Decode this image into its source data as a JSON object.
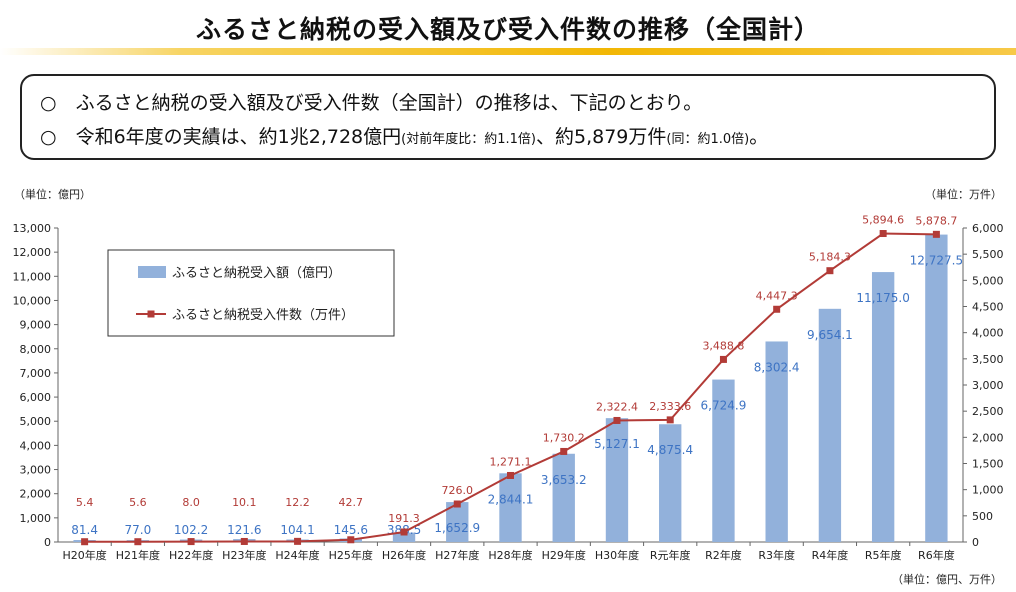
{
  "header": {
    "title": "ふるさと納税の受入額及び受入件数の推移（全国計）"
  },
  "summary": {
    "line1": "○　ふるさと納税の受入額及び受入件数（全国計）の推移は、下記のとおり。",
    "line2_main": "○　令和6年度の実績は、約1兆2,728億円",
    "line2_small1": "(対前年度比：約1.1倍)",
    "line2_mid": "、約5,879万件",
    "line2_small2": "(同：約1.0倍)",
    "line2_end": "。"
  },
  "chart_data": {
    "type": "bar",
    "categories": [
      "H20年度",
      "H21年度",
      "H22年度",
      "H23年度",
      "H24年度",
      "H25年度",
      "H26年度",
      "H27年度",
      "H28年度",
      "H29年度",
      "H30年度",
      "R元年度",
      "R2年度",
      "R3年度",
      "R4年度",
      "R5年度",
      "R6年度"
    ],
    "series": [
      {
        "name": "ふるさと納税受入額（億円）",
        "type": "bar",
        "axis": "left",
        "values": [
          81.4,
          77.0,
          102.2,
          121.6,
          104.1,
          145.6,
          388.5,
          1652.9,
          2844.1,
          3653.2,
          5127.1,
          4875.4,
          6724.9,
          8302.4,
          9654.1,
          11175.0,
          12727.5
        ],
        "labels": [
          "81.4",
          "77.0",
          "102.2",
          "121.6",
          "104.1",
          "145.6",
          "388.5",
          "1,652.9",
          "2,844.1",
          "3,653.2",
          "5,127.1",
          "4,875.4",
          "6,724.9",
          "8,302.4",
          "9,654.1",
          "11,175.0",
          "12,727.5"
        ]
      },
      {
        "name": "ふるさと納税受入件数（万件）",
        "type": "line",
        "axis": "right",
        "values": [
          5.4,
          5.6,
          8.0,
          10.1,
          12.2,
          42.7,
          191.3,
          726.0,
          1271.1,
          1730.2,
          2322.4,
          2333.6,
          3488.8,
          4447.3,
          5184.3,
          5894.6,
          5878.7
        ],
        "labels": [
          "5.4",
          "5.6",
          "8.0",
          "10.1",
          "12.2",
          "42.7",
          "191.3",
          "726.0",
          "1,271.1",
          "1,730.2",
          "2,322.4",
          "2,333.6",
          "3,488.8",
          "4,447.3",
          "5,184.3",
          "5,894.6",
          "5,878.7"
        ]
      }
    ],
    "ylim_left": [
      0,
      13000
    ],
    "yticks_left": [
      "0",
      "1,000",
      "2,000",
      "3,000",
      "4,000",
      "5,000",
      "6,000",
      "7,000",
      "8,000",
      "9,000",
      "10,000",
      "11,000",
      "12,000",
      "13,000"
    ],
    "ylim_right": [
      0,
      6000
    ],
    "yticks_right": [
      "0",
      "500",
      "1,000",
      "1,500",
      "2,000",
      "2,500",
      "3,000",
      "3,500",
      "4,000",
      "4,500",
      "5,000",
      "5,500",
      "6,000"
    ],
    "unit_left": "（単位：億円）",
    "unit_right": "（単位：万件）",
    "unit_bottom": "（単位：億円、万件）",
    "legend_position": "top-left",
    "colors": {
      "bar": "#92b1db",
      "line": "#b23b37",
      "bar_label": "#3e74c4",
      "line_label": "#b23b37"
    }
  }
}
